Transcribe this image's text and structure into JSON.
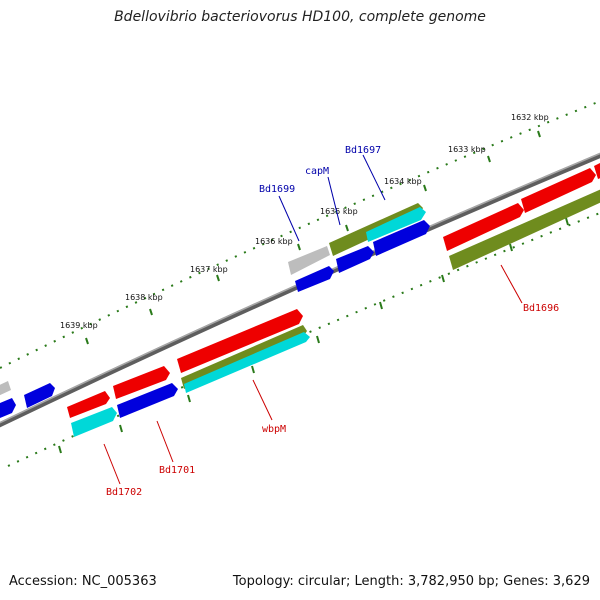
{
  "title": "Bdellovibrio bacteriovorus HD100, complete genome",
  "footer": {
    "accession": "Accession: NC_005363",
    "summary": "Topology: circular; Length: 3,782,950 bp; Genes: 3,629"
  },
  "colors": {
    "forward_cds": "#ee0000",
    "reverse_cds": "#0000dd",
    "rna_or_misc": "#00d8d8",
    "olive_feature": "#6f8c1e",
    "grey_feature": "#bdbdbd",
    "backbone": "#808080",
    "tick": "#2a7a1a",
    "label_forward": "#cc0000",
    "label_reverse": "#0000aa"
  },
  "ticks": [
    {
      "label": "1632 kbp"
    },
    {
      "label": "1633 kbp"
    },
    {
      "label": "1634 kbp"
    },
    {
      "label": "1635 kbp"
    },
    {
      "label": "1636 kbp"
    },
    {
      "label": "1637 kbp"
    },
    {
      "label": "1638 kbp"
    },
    {
      "label": "1639 kbp"
    }
  ],
  "gene_labels": [
    {
      "name": "Bd1697",
      "strand": "reverse"
    },
    {
      "name": "capM",
      "strand": "reverse"
    },
    {
      "name": "Bd1699",
      "strand": "reverse"
    },
    {
      "name": "Bd1696",
      "strand": "forward"
    },
    {
      "name": "wbpM",
      "strand": "forward"
    },
    {
      "name": "Bd1701",
      "strand": "forward"
    },
    {
      "name": "Bd1702",
      "strand": "forward"
    }
  ]
}
